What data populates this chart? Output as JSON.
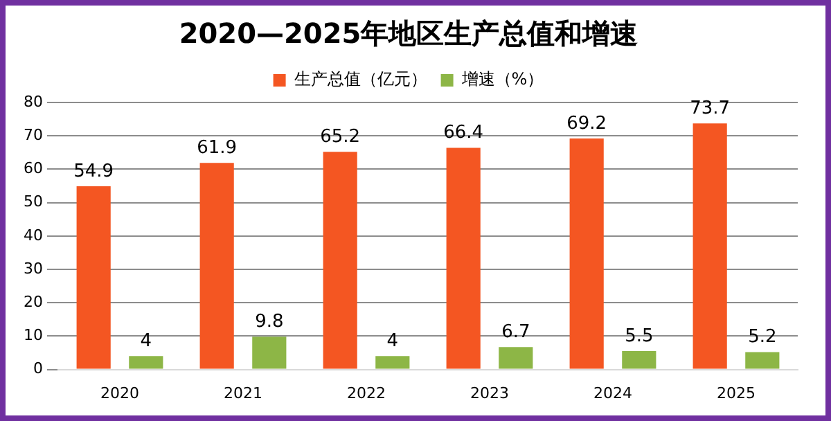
{
  "chart_data": {
    "type": "bar",
    "title": "2020—2025年地区生产总值和增速",
    "categories": [
      "2020",
      "2021",
      "2022",
      "2023",
      "2024",
      "2025"
    ],
    "series": [
      {
        "name": "生产总值（亿元）",
        "color": "#f45622",
        "values": [
          54.9,
          61.9,
          65.2,
          66.4,
          69.2,
          73.7
        ]
      },
      {
        "name": "增速（%）",
        "color": "#8db646",
        "values": [
          4,
          9.8,
          4,
          6.7,
          5.5,
          5.2
        ]
      }
    ],
    "ylim": [
      0,
      80
    ],
    "yticks": [
      0,
      10,
      20,
      30,
      40,
      50,
      60,
      70,
      80
    ],
    "grid": "y",
    "legend": "top",
    "data_labels": true
  }
}
